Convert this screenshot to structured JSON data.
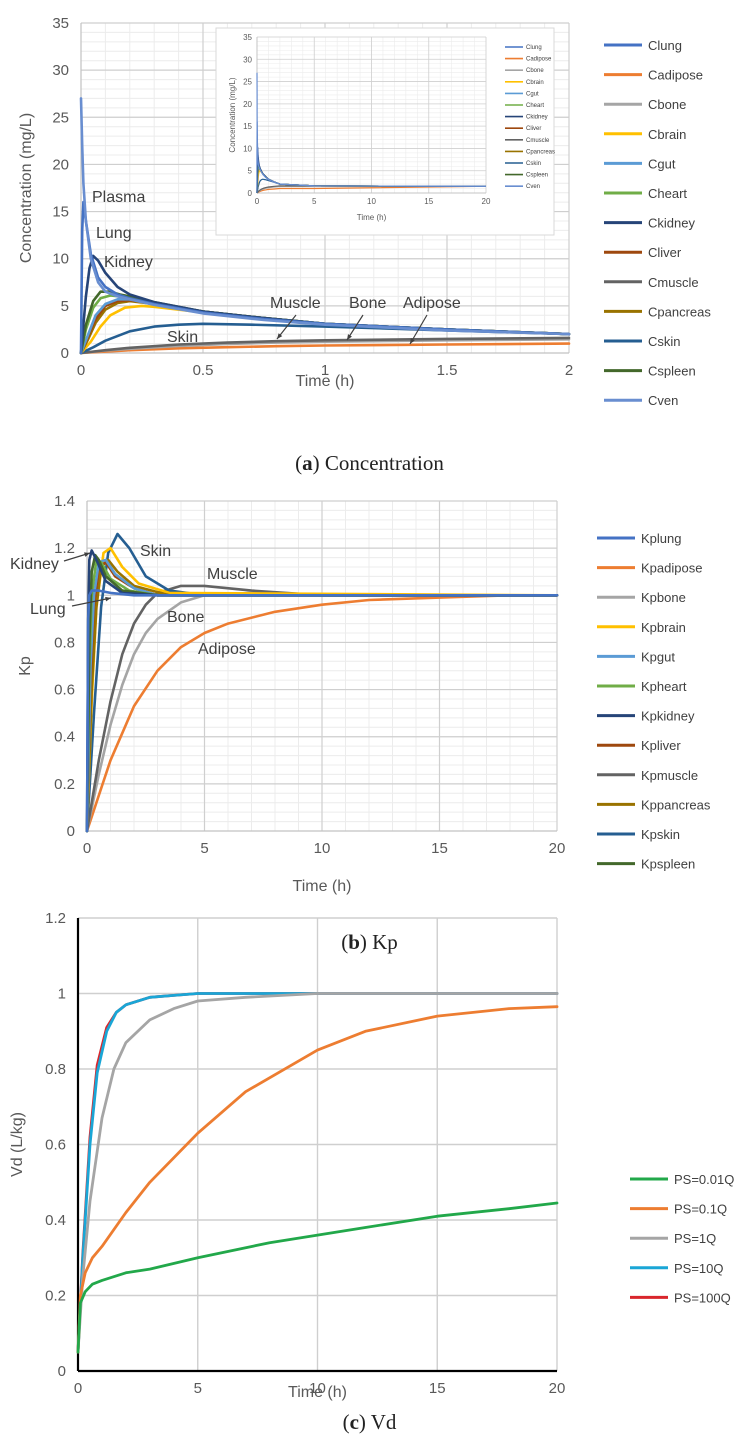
{
  "colors": {
    "lung": "#4472c4",
    "adipose": "#ed7d31",
    "bone": "#a5a5a5",
    "brain": "#ffc000",
    "gut": "#5b9bd5",
    "heart": "#70ad47",
    "kidney": "#264478",
    "liver": "#9e480e",
    "muscle": "#636363",
    "pancreas": "#997300",
    "skin": "#255e91",
    "spleen": "#43682b",
    "ven": "#698ed0",
    "ps001": "#22a84a",
    "ps01": "#ed7d31",
    "ps1": "#a5a5a5",
    "ps10": "#1aa6d6",
    "ps100": "#d9262c"
  },
  "chart_data": [
    {
      "id": "a",
      "type": "line",
      "caption_letter": "a",
      "caption_text": " Concentration",
      "xlabel": "Time (h)",
      "ylabel": "Concentration (mg/L)",
      "xlim": [
        0,
        2
      ],
      "ylim": [
        0,
        35
      ],
      "xticks": [
        "0",
        "0.5",
        "1",
        "1.5",
        "2"
      ],
      "yticks": [
        "0",
        "5",
        "10",
        "15",
        "20",
        "25",
        "30",
        "35"
      ],
      "legend": [
        "Clung",
        "Cadipose",
        "Cbone",
        "Cbrain",
        "Cgut",
        "Cheart",
        "Ckidney",
        "Cliver",
        "Cmuscle",
        "Cpancreas",
        "Cskin",
        "Cspleen",
        "Cven"
      ],
      "annotations": [
        "Plasma",
        "Lung",
        "Kidney",
        "Skin",
        "Muscle",
        "Bone",
        "Adipose"
      ],
      "series": [
        {
          "name": "Cven",
          "x": [
            0,
            0.005,
            0.01,
            0.02,
            0.04,
            0.07,
            0.1,
            0.15,
            0.2,
            0.3,
            0.5,
            0.75,
            1,
            1.5,
            2
          ],
          "y": [
            27,
            22,
            18,
            14,
            10,
            7.5,
            6.5,
            6,
            5.7,
            5.1,
            4.2,
            3.5,
            3,
            2.4,
            2
          ]
        },
        {
          "name": "Clung",
          "x": [
            0,
            0.005,
            0.01,
            0.02,
            0.04,
            0.07,
            0.1,
            0.15,
            0.2,
            0.3,
            0.5,
            0.75,
            1,
            1.5,
            2
          ],
          "y": [
            0,
            13,
            16,
            14,
            10.5,
            8,
            7,
            6.2,
            5.8,
            5.2,
            4.3,
            3.6,
            3.1,
            2.5,
            2
          ]
        },
        {
          "name": "Ckidney",
          "x": [
            0,
            0.01,
            0.02,
            0.035,
            0.05,
            0.07,
            0.1,
            0.15,
            0.2,
            0.3,
            0.5,
            0.75,
            1,
            1.5,
            2
          ],
          "y": [
            0,
            3,
            6,
            9,
            10.3,
            9.8,
            8.5,
            7,
            6.2,
            5.4,
            4.4,
            3.7,
            3.1,
            2.5,
            2
          ]
        },
        {
          "name": "Cspleen",
          "x": [
            0,
            0.02,
            0.05,
            0.08,
            0.12,
            0.16,
            0.2,
            0.3,
            0.5,
            0.75,
            1,
            1.5,
            2
          ],
          "y": [
            0,
            3,
            5.5,
            6.5,
            6.5,
            6.2,
            6,
            5.4,
            4.4,
            3.7,
            3.1,
            2.5,
            2
          ]
        },
        {
          "name": "Cheart",
          "x": [
            0,
            0.02,
            0.05,
            0.08,
            0.12,
            0.16,
            0.2,
            0.3,
            0.5,
            0.75,
            1,
            1.5,
            2
          ],
          "y": [
            0,
            2.5,
            4.8,
            5.8,
            6.1,
            6,
            5.8,
            5.3,
            4.4,
            3.7,
            3.1,
            2.5,
            2
          ]
        },
        {
          "name": "Cgut",
          "x": [
            0,
            0.03,
            0.06,
            0.1,
            0.15,
            0.2,
            0.3,
            0.5,
            0.75,
            1,
            1.5,
            2
          ],
          "y": [
            0,
            2,
            4,
            5.2,
            5.7,
            5.7,
            5.3,
            4.4,
            3.7,
            3.1,
            2.5,
            2
          ]
        },
        {
          "name": "Cliver",
          "x": [
            0,
            0.03,
            0.06,
            0.1,
            0.15,
            0.2,
            0.3,
            0.5,
            0.75,
            1,
            1.5,
            2
          ],
          "y": [
            0,
            1.8,
            3.6,
            5,
            5.5,
            5.6,
            5.3,
            4.4,
            3.7,
            3.1,
            2.5,
            2
          ]
        },
        {
          "name": "Cpancreas",
          "x": [
            0,
            0.03,
            0.06,
            0.1,
            0.15,
            0.2,
            0.3,
            0.5,
            0.75,
            1,
            1.5,
            2
          ],
          "y": [
            0,
            1.5,
            3.2,
            4.6,
            5.3,
            5.5,
            5.2,
            4.4,
            3.7,
            3.1,
            2.5,
            2
          ]
        },
        {
          "name": "Cbrain",
          "x": [
            0,
            0.04,
            0.08,
            0.12,
            0.18,
            0.25,
            0.3,
            0.5,
            0.75,
            1,
            1.5,
            2
          ],
          "y": [
            0,
            1.2,
            2.8,
            4,
            4.8,
            5,
            4.9,
            4.3,
            3.7,
            3.1,
            2.5,
            2
          ]
        },
        {
          "name": "Cskin",
          "x": [
            0,
            0.05,
            0.1,
            0.2,
            0.3,
            0.4,
            0.5,
            0.7,
            1,
            1.5,
            2
          ],
          "y": [
            0,
            0.6,
            1.3,
            2.3,
            2.8,
            3,
            3.1,
            3,
            2.8,
            2.4,
            2
          ]
        },
        {
          "name": "Cmuscle",
          "x": [
            0,
            0.1,
            0.2,
            0.4,
            0.6,
            0.8,
            1,
            1.5,
            2
          ],
          "y": [
            0,
            0.3,
            0.55,
            0.9,
            1.1,
            1.25,
            1.35,
            1.5,
            1.6
          ]
        },
        {
          "name": "Cbone",
          "x": [
            0,
            0.1,
            0.2,
            0.4,
            0.6,
            0.8,
            1,
            1.5,
            2
          ],
          "y": [
            0,
            0.25,
            0.45,
            0.75,
            0.95,
            1.1,
            1.2,
            1.35,
            1.45
          ]
        },
        {
          "name": "Cadipose",
          "x": [
            0,
            0.1,
            0.2,
            0.4,
            0.6,
            0.8,
            1,
            1.5,
            2
          ],
          "y": [
            0,
            0.15,
            0.3,
            0.5,
            0.62,
            0.72,
            0.8,
            0.9,
            1.0
          ]
        }
      ]
    },
    {
      "id": "a-inset",
      "type": "line",
      "xlabel": "Time (h)",
      "ylabel": "Concentration (mg/L)",
      "xlim": [
        0,
        20
      ],
      "ylim": [
        0,
        35
      ],
      "xticks": [
        "0",
        "5",
        "10",
        "15",
        "20"
      ],
      "yticks": [
        "0",
        "5",
        "10",
        "15",
        "20",
        "25",
        "30",
        "35"
      ],
      "legend": [
        "Clung",
        "Cadipose",
        "Cbone",
        "Cbrain",
        "Cgut",
        "Cheart",
        "Ckidney",
        "Cliver",
        "Cmuscle",
        "Cpancreas",
        "Cskin",
        "Cspleen",
        "Cven"
      ]
    },
    {
      "id": "b",
      "type": "line",
      "caption_letter": "b",
      "caption_text": " Kp",
      "xlabel": "Time (h)",
      "ylabel": "Kp",
      "xlim": [
        0,
        20
      ],
      "ylim": [
        0,
        1.4
      ],
      "xticks": [
        "0",
        "5",
        "10",
        "15",
        "20"
      ],
      "yticks": [
        "0",
        "0.2",
        "0.4",
        "0.6",
        "0.8",
        "1",
        "1.2",
        "1.4"
      ],
      "legend": [
        "Kplung",
        "Kpadipose",
        "Kpbone",
        "Kpbrain",
        "Kpgut",
        "Kpheart",
        "Kpkidney",
        "Kpliver",
        "Kpmuscle",
        "Kppancreas",
        "Kpskin",
        "Kpspleen"
      ],
      "annotations": [
        "Kidney",
        "Lung",
        "Skin",
        "Muscle",
        "Bone",
        "Adipose"
      ],
      "series": [
        {
          "name": "Kplung",
          "x": [
            0,
            0.05,
            0.1,
            0.2,
            0.5,
            1,
            2,
            3,
            20
          ],
          "y": [
            0,
            0.9,
            1.0,
            1.02,
            1.02,
            1.01,
            1.0,
            1.0,
            1.0
          ]
        },
        {
          "name": "Kpkidney",
          "x": [
            0,
            0.05,
            0.1,
            0.2,
            0.4,
            0.8,
            1.5,
            3,
            20
          ],
          "y": [
            0,
            0.9,
            1.15,
            1.19,
            1.15,
            1.06,
            1.01,
            1.0,
            1.0
          ]
        },
        {
          "name": "Kpspleen",
          "x": [
            0,
            0.1,
            0.2,
            0.35,
            0.5,
            0.8,
            1.5,
            3,
            20
          ],
          "y": [
            0,
            0.8,
            1.1,
            1.17,
            1.15,
            1.08,
            1.02,
            1.0,
            1.0
          ]
        },
        {
          "name": "Kpheart",
          "x": [
            0,
            0.1,
            0.2,
            0.4,
            0.6,
            1,
            1.8,
            3,
            20
          ],
          "y": [
            0,
            0.7,
            1.0,
            1.15,
            1.14,
            1.07,
            1.02,
            1.0,
            1.0
          ]
        },
        {
          "name": "Kpgut",
          "x": [
            0,
            0.15,
            0.3,
            0.5,
            0.8,
            1.2,
            2,
            3,
            20
          ],
          "y": [
            0,
            0.7,
            1.0,
            1.14,
            1.15,
            1.09,
            1.03,
            1.0,
            1.0
          ]
        },
        {
          "name": "Kpliver",
          "x": [
            0,
            0.15,
            0.3,
            0.5,
            0.8,
            1.2,
            2,
            3,
            20
          ],
          "y": [
            0,
            0.65,
            0.95,
            1.12,
            1.14,
            1.08,
            1.03,
            1.0,
            1.0
          ]
        },
        {
          "name": "Kppancreas",
          "x": [
            0,
            0.2,
            0.4,
            0.6,
            0.9,
            1.3,
            2,
            3.5,
            20
          ],
          "y": [
            0,
            0.6,
            0.95,
            1.12,
            1.15,
            1.1,
            1.04,
            1.0,
            1.0
          ]
        },
        {
          "name": "Kpbrain",
          "x": [
            0,
            0.2,
            0.4,
            0.7,
            1,
            1.5,
            2.2,
            3.5,
            20
          ],
          "y": [
            0,
            0.55,
            0.95,
            1.18,
            1.2,
            1.12,
            1.05,
            1.01,
            1.0
          ]
        },
        {
          "name": "Kpskin",
          "x": [
            0,
            0.3,
            0.6,
            0.9,
            1.3,
            1.8,
            2.5,
            3.5,
            5,
            8,
            20
          ],
          "y": [
            0,
            0.5,
            0.95,
            1.18,
            1.26,
            1.2,
            1.08,
            1.02,
            1.0,
            1.0,
            1.0
          ]
        },
        {
          "name": "Kpmuscle",
          "x": [
            0,
            0.5,
            1,
            1.5,
            2,
            2.5,
            3,
            4,
            5,
            7,
            10,
            20
          ],
          "y": [
            0,
            0.3,
            0.55,
            0.75,
            0.88,
            0.96,
            1.01,
            1.04,
            1.04,
            1.02,
            1.0,
            1.0
          ]
        },
        {
          "name": "Kpbone",
          "x": [
            0,
            0.5,
            1,
            1.5,
            2,
            2.5,
            3,
            4,
            5,
            7,
            10,
            20
          ],
          "y": [
            0,
            0.24,
            0.45,
            0.62,
            0.75,
            0.84,
            0.9,
            0.97,
            1.0,
            1.01,
            1.0,
            1.0
          ]
        },
        {
          "name": "Kpadipose",
          "x": [
            0,
            1,
            2,
            3,
            4,
            5,
            6,
            8,
            10,
            12,
            15,
            18,
            20
          ],
          "y": [
            0,
            0.3,
            0.53,
            0.68,
            0.78,
            0.84,
            0.88,
            0.93,
            0.96,
            0.98,
            0.99,
            1.0,
            1.0
          ]
        }
      ]
    },
    {
      "id": "c",
      "type": "line",
      "caption_letter": "c",
      "caption_text": " Vd",
      "xlabel": "Time (h)",
      "ylabel": "Vd (L/kg)",
      "xlim": [
        0,
        20
      ],
      "ylim": [
        0,
        1.2
      ],
      "xticks": [
        "0",
        "5",
        "10",
        "15",
        "20"
      ],
      "yticks": [
        "0",
        "0.2",
        "0.4",
        "0.6",
        "0.8",
        "1",
        "1.2"
      ],
      "legend": [
        "PS=0.01Q",
        "PS=0.1Q",
        "PS=1Q",
        "PS=10Q",
        "PS=100Q"
      ],
      "series": [
        {
          "name": "PS=0.01Q",
          "x": [
            0,
            0.1,
            0.3,
            0.6,
            1,
            2,
            3,
            5,
            8,
            10,
            12,
            15,
            18,
            20
          ],
          "y": [
            0.05,
            0.18,
            0.21,
            0.23,
            0.24,
            0.26,
            0.27,
            0.3,
            0.34,
            0.36,
            0.38,
            0.41,
            0.43,
            0.445
          ]
        },
        {
          "name": "PS=0.1Q",
          "x": [
            0,
            0.1,
            0.3,
            0.6,
            1,
            2,
            3,
            5,
            7,
            10,
            12,
            15,
            18,
            20
          ],
          "y": [
            0.05,
            0.2,
            0.26,
            0.3,
            0.33,
            0.42,
            0.5,
            0.63,
            0.74,
            0.85,
            0.9,
            0.94,
            0.96,
            0.965
          ]
        },
        {
          "name": "PS=1Q",
          "x": [
            0,
            0.2,
            0.5,
            1,
            1.5,
            2,
            3,
            4,
            5,
            7,
            10,
            15,
            20
          ],
          "y": [
            0.05,
            0.25,
            0.45,
            0.67,
            0.8,
            0.87,
            0.93,
            0.96,
            0.98,
            0.99,
            1.0,
            1.0,
            1.0
          ]
        },
        {
          "name": "PS=10Q",
          "x": [
            0,
            0.2,
            0.5,
            0.8,
            1.2,
            1.6,
            2,
            3,
            4,
            5,
            10,
            20
          ],
          "y": [
            0.05,
            0.3,
            0.6,
            0.79,
            0.9,
            0.95,
            0.97,
            0.99,
            0.995,
            1.0,
            1.0,
            1.0
          ]
        },
        {
          "name": "PS=100Q",
          "x": [
            0,
            0.2,
            0.5,
            0.8,
            1.2,
            1.6,
            2,
            3,
            4,
            5,
            10,
            20
          ],
          "y": [
            0.05,
            0.31,
            0.62,
            0.81,
            0.91,
            0.95,
            0.97,
            0.99,
            0.995,
            1.0,
            1.0,
            1.0
          ]
        }
      ]
    }
  ]
}
